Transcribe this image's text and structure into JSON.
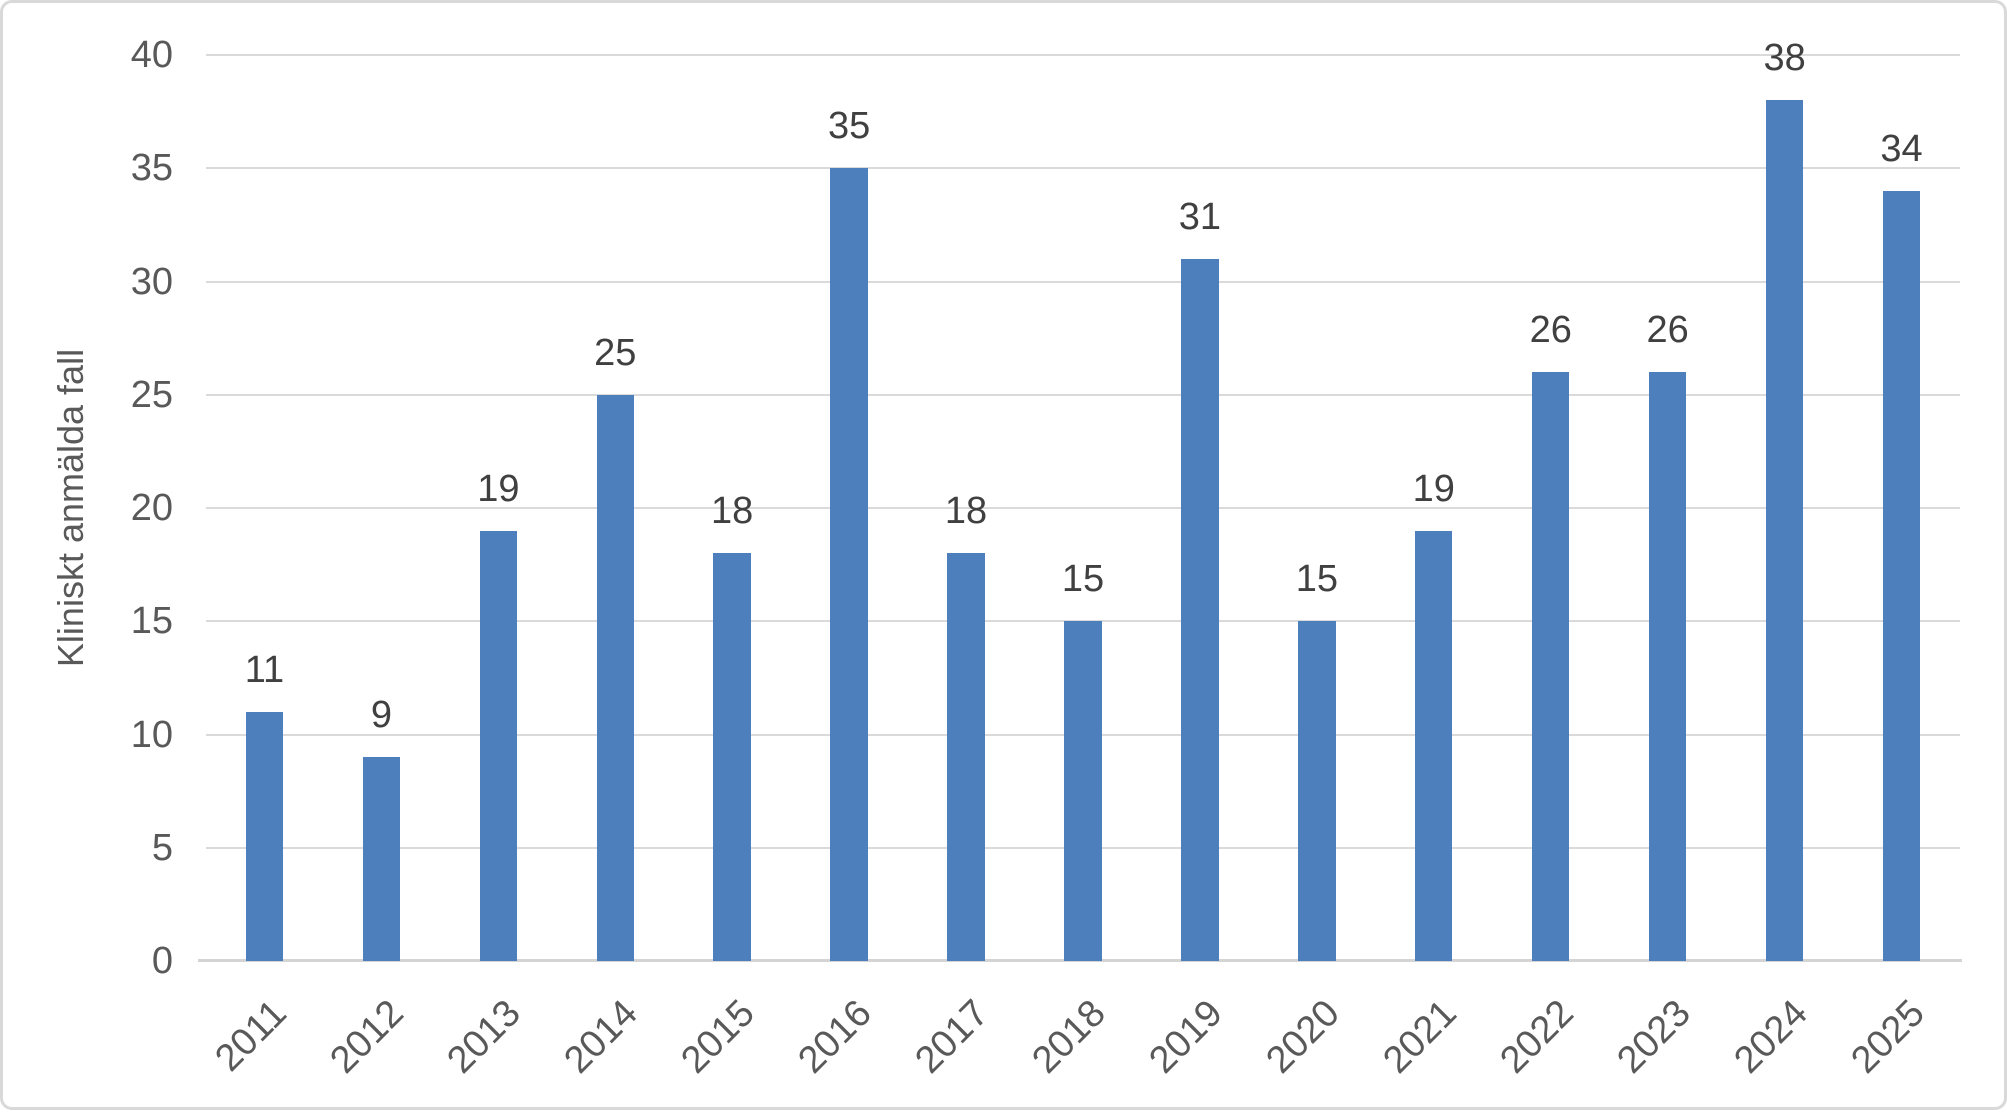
{
  "chart_data": {
    "type": "bar",
    "title": "",
    "categories": [
      "2011",
      "2012",
      "2013",
      "2014",
      "2015",
      "2016",
      "2017",
      "2018",
      "2019",
      "2020",
      "2021",
      "2022",
      "2023",
      "2024",
      "2025"
    ],
    "values": [
      11,
      9,
      19,
      25,
      18,
      35,
      18,
      15,
      31,
      15,
      19,
      26,
      26,
      38,
      34
    ],
    "xlabel": "",
    "ylabel": "Kliniskt anmälda fall",
    "ylim": [
      0,
      40
    ],
    "yticks": [
      0,
      5,
      10,
      15,
      20,
      25,
      30,
      35,
      40
    ],
    "grid": true,
    "legend": "none",
    "data_labels": true
  },
  "colors": {
    "bar_fill": "#4E7FBD",
    "gridline": "#DADADA",
    "axis_line": "#D4D4D4",
    "tick_text": "#595959",
    "data_label_text": "#404040",
    "axis_title_text": "#595959",
    "frame_border": "#D9D9D9",
    "background": "#FFFFFF"
  }
}
